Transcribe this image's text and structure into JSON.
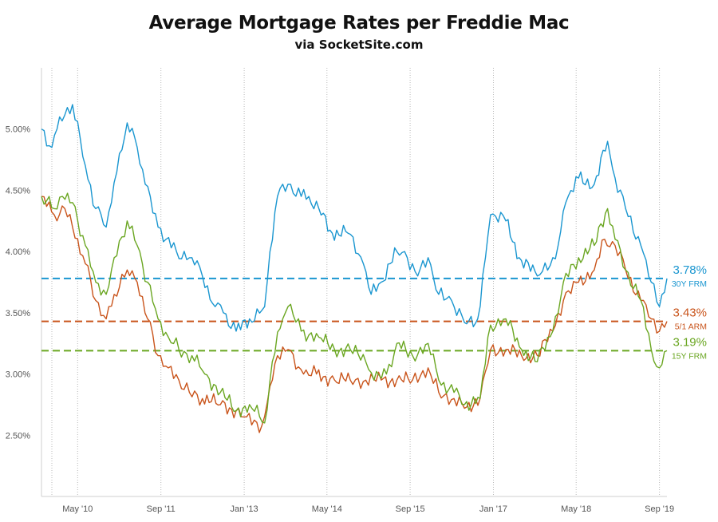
{
  "title": "Average Mortgage Rates per Freddie Mac",
  "subtitle": "via SocketSite.com",
  "colors": {
    "frm30": "#1a96d0",
    "arm51": "#c9541b",
    "frm15": "#6aa621"
  },
  "chart_data": {
    "type": "line",
    "title": "Average Mortgage Rates per Freddie Mac",
    "subtitle": "via SocketSite.com",
    "x_range": [
      "2009-10-01",
      "2019-10-15"
    ],
    "ylim": [
      2.0,
      5.5
    ],
    "y_ticks": [
      {
        "value": 2.5,
        "label": "2.50%"
      },
      {
        "value": 3.0,
        "label": "3.00%"
      },
      {
        "value": 3.5,
        "label": "3.50%"
      },
      {
        "value": 4.0,
        "label": "4.00%"
      },
      {
        "value": 4.5,
        "label": "4.50%"
      },
      {
        "value": 5.0,
        "label": "5.00%"
      }
    ],
    "x_ticks": [
      {
        "date": "2010-05-01",
        "label": "May '10"
      },
      {
        "date": "2011-09-01",
        "label": "Sep '11"
      },
      {
        "date": "2013-01-01",
        "label": "Jan '13"
      },
      {
        "date": "2014-05-01",
        "label": "May '14"
      },
      {
        "date": "2015-09-01",
        "label": "Sep '15"
      },
      {
        "date": "2017-01-01",
        "label": "Jan '17"
      },
      {
        "date": "2018-05-01",
        "label": "May '18"
      },
      {
        "date": "2019-09-01",
        "label": "Sep '19"
      }
    ],
    "grid": "vertical",
    "series": [
      {
        "name": "30Y FRM",
        "color": "#1a96d0",
        "latest": "3.78%",
        "reference_value": 3.78,
        "points": [
          [
            "2009-10-01",
            5.0
          ],
          [
            "2009-12-01",
            4.85
          ],
          [
            "2010-01-15",
            5.1
          ],
          [
            "2010-04-01",
            5.2
          ],
          [
            "2010-06-15",
            4.7
          ],
          [
            "2010-08-15",
            4.35
          ],
          [
            "2010-10-15",
            4.2
          ],
          [
            "2010-11-15",
            4.4
          ],
          [
            "2011-01-01",
            4.8
          ],
          [
            "2011-02-15",
            5.05
          ],
          [
            "2011-04-15",
            4.85
          ],
          [
            "2011-06-01",
            4.55
          ],
          [
            "2011-08-15",
            4.2
          ],
          [
            "2011-10-01",
            4.1
          ],
          [
            "2011-12-01",
            4.0
          ],
          [
            "2012-03-01",
            3.95
          ],
          [
            "2012-05-01",
            3.8
          ],
          [
            "2012-07-15",
            3.55
          ],
          [
            "2012-09-01",
            3.5
          ],
          [
            "2012-11-15",
            3.35
          ],
          [
            "2013-02-01",
            3.45
          ],
          [
            "2013-05-01",
            3.55
          ],
          [
            "2013-06-01",
            4.0
          ],
          [
            "2013-07-15",
            4.45
          ],
          [
            "2013-09-15",
            4.55
          ],
          [
            "2013-12-01",
            4.45
          ],
          [
            "2014-01-15",
            4.45
          ],
          [
            "2014-03-15",
            4.35
          ],
          [
            "2014-06-01",
            4.15
          ],
          [
            "2014-09-01",
            4.15
          ],
          [
            "2014-12-01",
            3.9
          ],
          [
            "2015-01-15",
            3.65
          ],
          [
            "2015-03-15",
            3.75
          ],
          [
            "2015-06-15",
            4.0
          ],
          [
            "2015-08-15",
            3.95
          ],
          [
            "2015-10-15",
            3.8
          ],
          [
            "2015-12-15",
            3.95
          ],
          [
            "2016-02-15",
            3.65
          ],
          [
            "2016-05-01",
            3.6
          ],
          [
            "2016-07-15",
            3.42
          ],
          [
            "2016-10-01",
            3.45
          ],
          [
            "2016-11-15",
            3.95
          ],
          [
            "2016-12-15",
            4.3
          ],
          [
            "2017-03-15",
            4.25
          ],
          [
            "2017-06-01",
            3.95
          ],
          [
            "2017-09-15",
            3.8
          ],
          [
            "2017-12-15",
            3.95
          ],
          [
            "2018-01-15",
            4.05
          ],
          [
            "2018-03-01",
            4.4
          ],
          [
            "2018-05-15",
            4.6
          ],
          [
            "2018-08-15",
            4.55
          ],
          [
            "2018-11-01",
            4.9
          ],
          [
            "2018-12-15",
            4.6
          ],
          [
            "2019-02-15",
            4.35
          ],
          [
            "2019-05-15",
            4.05
          ],
          [
            "2019-07-15",
            3.75
          ],
          [
            "2019-09-01",
            3.55
          ],
          [
            "2019-10-15",
            3.78
          ]
        ]
      },
      {
        "name": "5/1 ARM",
        "color": "#c9541b",
        "latest": "3.43%",
        "reference_value": 3.43,
        "points": [
          [
            "2009-10-01",
            4.45
          ],
          [
            "2009-12-15",
            4.3
          ],
          [
            "2010-02-15",
            4.35
          ],
          [
            "2010-04-01",
            4.2
          ],
          [
            "2010-06-15",
            3.9
          ],
          [
            "2010-08-15",
            3.6
          ],
          [
            "2010-10-15",
            3.45
          ],
          [
            "2010-12-01",
            3.65
          ],
          [
            "2011-02-15",
            3.85
          ],
          [
            "2011-04-15",
            3.75
          ],
          [
            "2011-06-15",
            3.45
          ],
          [
            "2011-08-15",
            3.15
          ],
          [
            "2011-10-15",
            3.05
          ],
          [
            "2011-12-15",
            2.95
          ],
          [
            "2012-02-15",
            2.85
          ],
          [
            "2012-05-01",
            2.8
          ],
          [
            "2012-08-15",
            2.75
          ],
          [
            "2012-11-15",
            2.7
          ],
          [
            "2013-01-15",
            2.65
          ],
          [
            "2013-04-15",
            2.58
          ],
          [
            "2013-06-01",
            2.9
          ],
          [
            "2013-07-15",
            3.15
          ],
          [
            "2013-09-15",
            3.2
          ],
          [
            "2013-12-15",
            3.0
          ],
          [
            "2014-03-01",
            3.0
          ],
          [
            "2014-06-15",
            2.95
          ],
          [
            "2014-09-15",
            2.95
          ],
          [
            "2014-12-15",
            2.95
          ],
          [
            "2015-03-15",
            2.95
          ],
          [
            "2015-06-15",
            2.95
          ],
          [
            "2015-09-15",
            2.95
          ],
          [
            "2015-12-15",
            3.05
          ],
          [
            "2016-02-15",
            2.85
          ],
          [
            "2016-05-15",
            2.8
          ],
          [
            "2016-07-15",
            2.72
          ],
          [
            "2016-10-15",
            2.8
          ],
          [
            "2016-12-15",
            3.2
          ],
          [
            "2017-03-15",
            3.2
          ],
          [
            "2017-06-15",
            3.15
          ],
          [
            "2017-09-15",
            3.15
          ],
          [
            "2017-12-15",
            3.35
          ],
          [
            "2018-02-15",
            3.6
          ],
          [
            "2018-05-15",
            3.75
          ],
          [
            "2018-08-15",
            3.85
          ],
          [
            "2018-10-15",
            4.1
          ],
          [
            "2018-12-15",
            4.05
          ],
          [
            "2019-02-15",
            3.85
          ],
          [
            "2019-05-15",
            3.6
          ],
          [
            "2019-07-15",
            3.45
          ],
          [
            "2019-09-01",
            3.35
          ],
          [
            "2019-10-15",
            3.43
          ]
        ]
      },
      {
        "name": "15Y FRM",
        "color": "#6aa621",
        "latest": "3.19%",
        "reference_value": 3.19,
        "points": [
          [
            "2009-10-01",
            4.45
          ],
          [
            "2009-12-15",
            4.35
          ],
          [
            "2010-02-01",
            4.45
          ],
          [
            "2010-04-01",
            4.4
          ],
          [
            "2010-06-15",
            4.05
          ],
          [
            "2010-08-15",
            3.75
          ],
          [
            "2010-10-15",
            3.65
          ],
          [
            "2010-12-01",
            3.95
          ],
          [
            "2011-02-15",
            4.25
          ],
          [
            "2011-04-15",
            4.05
          ],
          [
            "2011-06-15",
            3.75
          ],
          [
            "2011-08-15",
            3.45
          ],
          [
            "2011-10-15",
            3.3
          ],
          [
            "2011-12-15",
            3.2
          ],
          [
            "2012-03-01",
            3.15
          ],
          [
            "2012-05-15",
            3.0
          ],
          [
            "2012-08-15",
            2.85
          ],
          [
            "2012-11-15",
            2.7
          ],
          [
            "2013-02-01",
            2.75
          ],
          [
            "2013-05-01",
            2.6
          ],
          [
            "2013-06-15",
            3.1
          ],
          [
            "2013-08-15",
            3.45
          ],
          [
            "2013-09-15",
            3.55
          ],
          [
            "2013-12-01",
            3.35
          ],
          [
            "2014-03-15",
            3.3
          ],
          [
            "2014-06-15",
            3.2
          ],
          [
            "2014-09-15",
            3.2
          ],
          [
            "2014-12-15",
            3.1
          ],
          [
            "2015-02-01",
            2.95
          ],
          [
            "2015-04-15",
            3.0
          ],
          [
            "2015-06-15",
            3.25
          ],
          [
            "2015-09-15",
            3.15
          ],
          [
            "2015-12-15",
            3.25
          ],
          [
            "2016-02-15",
            2.95
          ],
          [
            "2016-05-15",
            2.85
          ],
          [
            "2016-07-15",
            2.75
          ],
          [
            "2016-10-15",
            2.8
          ],
          [
            "2016-12-15",
            3.4
          ],
          [
            "2017-03-15",
            3.45
          ],
          [
            "2017-06-15",
            3.2
          ],
          [
            "2017-09-15",
            3.1
          ],
          [
            "2017-12-15",
            3.35
          ],
          [
            "2018-02-15",
            3.75
          ],
          [
            "2018-05-15",
            3.95
          ],
          [
            "2018-08-15",
            4.05
          ],
          [
            "2018-11-01",
            4.35
          ],
          [
            "2018-12-15",
            4.1
          ],
          [
            "2019-02-15",
            3.85
          ],
          [
            "2019-05-15",
            3.6
          ],
          [
            "2019-07-15",
            3.2
          ],
          [
            "2019-09-01",
            3.05
          ],
          [
            "2019-10-15",
            3.19
          ]
        ]
      }
    ]
  }
}
